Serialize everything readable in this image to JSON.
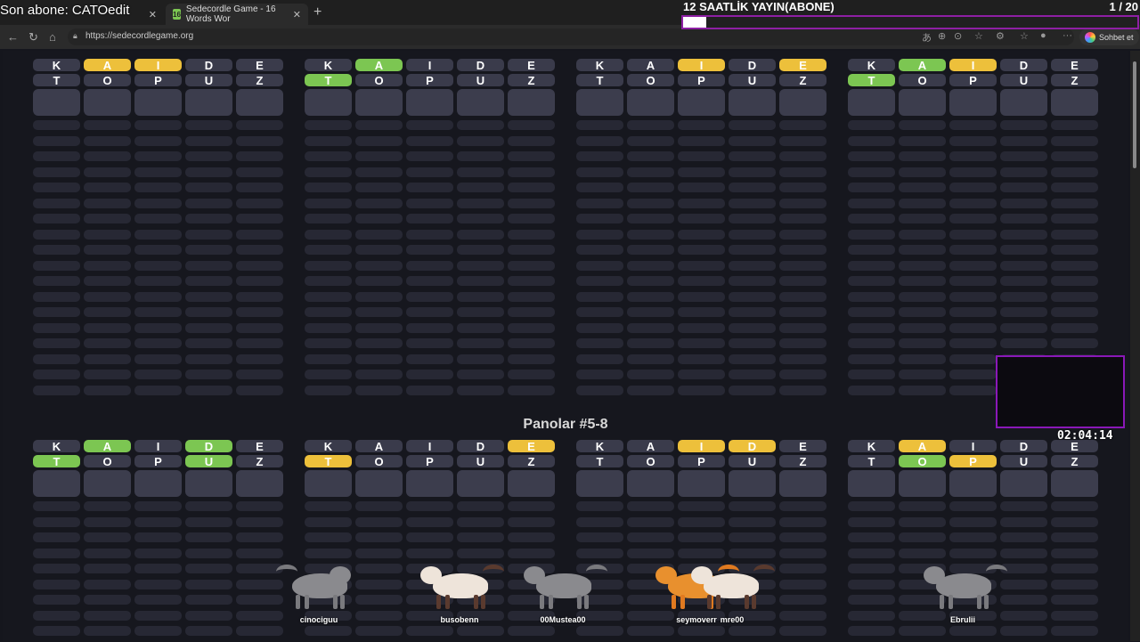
{
  "overlay": {
    "title": "Son abone: CATOedit",
    "subgoal_title": "12 SAATLİK YAYIN(ABONE)",
    "subgoal_current": "1",
    "subgoal_total": "/ 20",
    "subgoal_progress": 0.05,
    "timer": "02:04:14"
  },
  "browser": {
    "tabs": [
      {
        "label": "",
        "active": false
      },
      {
        "label": "Sedecordle Game - 16 Words Wor",
        "favicon": "16",
        "active": true
      }
    ],
    "url": "https://sedecordlegame.org",
    "chat_label": "Sohbet et"
  },
  "colors": {
    "yellow": "#edc03b",
    "green": "#7cc652",
    "tile": "#3a3b4b"
  },
  "section_title": "Panolar #5-8",
  "boards": [
    {
      "rows": [
        [
          "K",
          "A",
          "I",
          "D",
          "E"
        ],
        [
          "T",
          "O",
          "P",
          "U",
          "Z"
        ]
      ],
      "states": [
        [
          "n",
          "y",
          "y",
          "n",
          "n"
        ],
        [
          "n",
          "n",
          "n",
          "n",
          "n"
        ]
      ]
    },
    {
      "rows": [
        [
          "K",
          "A",
          "I",
          "D",
          "E"
        ],
        [
          "T",
          "O",
          "P",
          "U",
          "Z"
        ]
      ],
      "states": [
        [
          "n",
          "g",
          "n",
          "n",
          "n"
        ],
        [
          "g",
          "n",
          "n",
          "n",
          "n"
        ]
      ]
    },
    {
      "rows": [
        [
          "K",
          "A",
          "I",
          "D",
          "E"
        ],
        [
          "T",
          "O",
          "P",
          "U",
          "Z"
        ]
      ],
      "states": [
        [
          "n",
          "n",
          "y",
          "n",
          "y"
        ],
        [
          "n",
          "n",
          "n",
          "n",
          "n"
        ]
      ]
    },
    {
      "rows": [
        [
          "K",
          "A",
          "I",
          "D",
          "E"
        ],
        [
          "T",
          "O",
          "P",
          "U",
          "Z"
        ]
      ],
      "states": [
        [
          "n",
          "g",
          "y",
          "n",
          "n"
        ],
        [
          "g",
          "n",
          "n",
          "n",
          "n"
        ]
      ]
    },
    {
      "rows": [
        [
          "K",
          "A",
          "I",
          "D",
          "E"
        ],
        [
          "T",
          "O",
          "P",
          "U",
          "Z"
        ]
      ],
      "states": [
        [
          "n",
          "g",
          "n",
          "g",
          "n"
        ],
        [
          "g",
          "n",
          "n",
          "g",
          "n"
        ]
      ]
    },
    {
      "rows": [
        [
          "K",
          "A",
          "I",
          "D",
          "E"
        ],
        [
          "T",
          "O",
          "P",
          "U",
          "Z"
        ]
      ],
      "states": [
        [
          "n",
          "n",
          "n",
          "n",
          "y"
        ],
        [
          "y",
          "n",
          "n",
          "n",
          "n"
        ]
      ]
    },
    {
      "rows": [
        [
          "K",
          "A",
          "I",
          "D",
          "E"
        ],
        [
          "T",
          "O",
          "P",
          "U",
          "Z"
        ]
      ],
      "states": [
        [
          "n",
          "n",
          "y",
          "y",
          "n"
        ],
        [
          "n",
          "n",
          "n",
          "n",
          "n"
        ]
      ]
    },
    {
      "rows": [
        [
          "K",
          "A",
          "I",
          "D",
          "E"
        ],
        [
          "T",
          "O",
          "P",
          "U",
          "Z"
        ]
      ],
      "states": [
        [
          "n",
          "y",
          "n",
          "n",
          "n"
        ],
        [
          "n",
          "g",
          "y",
          "n",
          "n"
        ]
      ]
    }
  ],
  "viewers": [
    {
      "name": "cinociguu",
      "cat": "gray"
    },
    {
      "name": "busobenn",
      "cat": "siamese"
    },
    {
      "name": "00Mustea00",
      "cat": "gray"
    },
    {
      "name": "seymoverr",
      "cat": "orange"
    },
    {
      "name": "mre00",
      "cat": "siamese"
    },
    {
      "name": "Ebrulii",
      "cat": "gray"
    }
  ]
}
